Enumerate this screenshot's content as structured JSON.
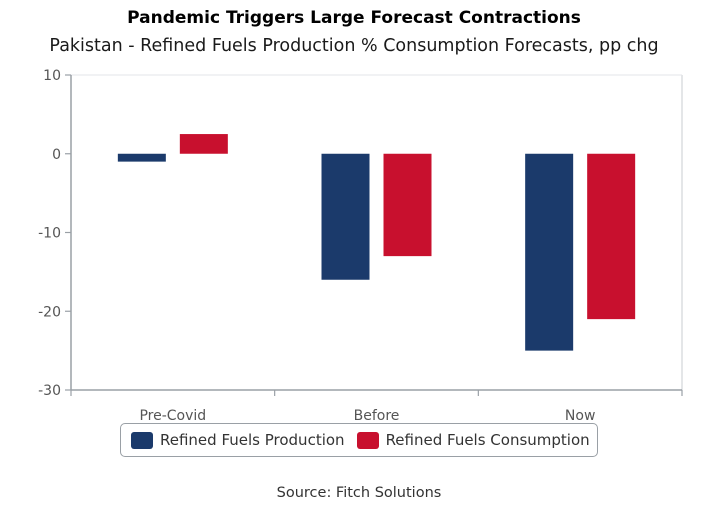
{
  "chart_data": {
    "type": "bar",
    "title": "Pandemic Triggers Large Forecast Contractions",
    "subtitle": "Pakistan - Refined Fuels Production % Consumption Forecasts, pp chg",
    "categories": [
      "Pre-Covid",
      "Before",
      "Now"
    ],
    "series": [
      {
        "name": "Refined Fuels Production",
        "color": "#1b3a6b",
        "values": [
          -1,
          -16,
          -25
        ]
      },
      {
        "name": "Refined Fuels Consumption",
        "color": "#c8102e",
        "values": [
          2.5,
          -13,
          -21
        ]
      }
    ],
    "ylim": [
      -30,
      10
    ],
    "yticks": [
      10,
      0,
      -10,
      -20,
      -30
    ],
    "xlabel": "",
    "ylabel": "",
    "grid": false,
    "legend_position": "bottom",
    "source": "Source: Fitch Solutions"
  }
}
